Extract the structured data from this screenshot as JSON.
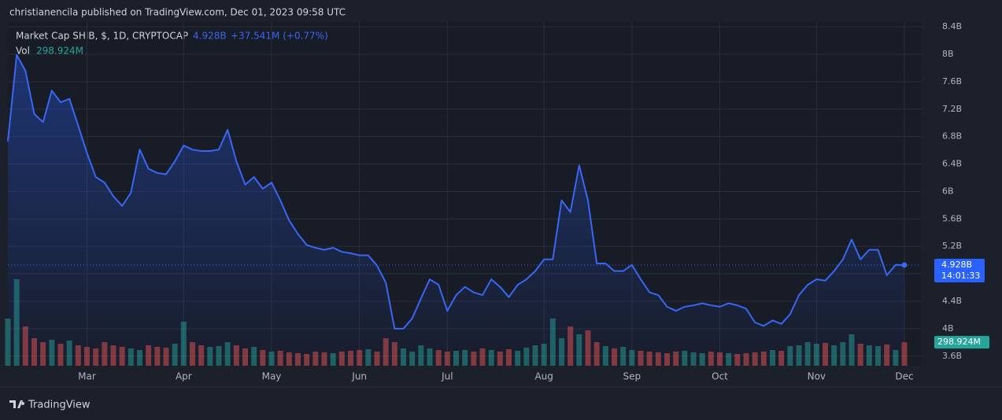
{
  "header": "christianencila published on TradingView.com, Dec 01, 2023 09:58 UTC",
  "footer": "TradingView",
  "chart_data": {
    "type": "line",
    "title": "Market Cap SHIB, $, 1D, CRYPTOCAP",
    "last_value_text": "4.928B",
    "change_text": "+37.541M (+0.77%)",
    "countdown": "14:01:33",
    "color": "#3a66f2",
    "grid": true,
    "ylim": [
      3.46,
      8.47
    ],
    "yticks": [
      {
        "value": 3.6,
        "label": "3.6B"
      },
      {
        "value": 4,
        "label": "4B"
      },
      {
        "value": 4.4,
        "label": "4.4B"
      },
      {
        "value": 4.8,
        "label": "4.8B"
      },
      {
        "value": 5.2,
        "label": "5.2B"
      },
      {
        "value": 5.6,
        "label": "5.6B"
      },
      {
        "value": 6,
        "label": "6B"
      },
      {
        "value": 6.4,
        "label": "6.4B"
      },
      {
        "value": 6.8,
        "label": "6.8B"
      },
      {
        "value": 7.2,
        "label": "7.2B"
      },
      {
        "value": 7.6,
        "label": "7.6B"
      },
      {
        "value": 8,
        "label": "8B"
      },
      {
        "value": 8.4,
        "label": "8.4B"
      }
    ],
    "categories": [
      null,
      null,
      null,
      null,
      null,
      null,
      null,
      null,
      null,
      "Mar",
      null,
      null,
      null,
      null,
      null,
      null,
      null,
      null,
      null,
      null,
      "Apr",
      null,
      null,
      null,
      null,
      null,
      null,
      null,
      null,
      null,
      "May",
      null,
      null,
      null,
      null,
      null,
      null,
      null,
      null,
      null,
      "Jun",
      null,
      null,
      null,
      null,
      null,
      null,
      null,
      null,
      null,
      "Jul",
      null,
      null,
      null,
      null,
      null,
      null,
      null,
      null,
      null,
      null,
      "Aug",
      null,
      null,
      null,
      null,
      null,
      null,
      null,
      null,
      null,
      "Sep",
      null,
      null,
      null,
      null,
      null,
      null,
      null,
      null,
      null,
      "Oct",
      null,
      null,
      null,
      null,
      null,
      null,
      null,
      null,
      null,
      null,
      "Nov",
      null,
      null,
      null,
      null,
      null,
      null,
      null,
      null,
      null,
      "Dec"
    ],
    "values": [
      6.73,
      7.99,
      7.76,
      7.13,
      7.01,
      7.47,
      7.3,
      7.35,
      6.96,
      6.56,
      6.21,
      6.13,
      5.93,
      5.79,
      5.98,
      6.61,
      6.33,
      6.27,
      6.25,
      6.44,
      6.67,
      6.61,
      6.59,
      6.59,
      6.61,
      6.9,
      6.44,
      6.1,
      6.21,
      6.04,
      6.13,
      5.87,
      5.58,
      5.38,
      5.22,
      5.18,
      5.15,
      5.18,
      5.12,
      5.1,
      5.07,
      5.07,
      4.92,
      4.67,
      4.0,
      4.0,
      4.15,
      4.44,
      4.72,
      4.64,
      4.26,
      4.49,
      4.61,
      4.53,
      4.49,
      4.72,
      4.61,
      4.46,
      4.64,
      4.72,
      4.84,
      5.01,
      5.01,
      5.87,
      5.7,
      6.38,
      5.87,
      4.95,
      4.95,
      4.84,
      4.84,
      4.93,
      4.72,
      4.53,
      4.49,
      4.32,
      4.26,
      4.32,
      4.34,
      4.37,
      4.34,
      4.32,
      4.37,
      4.34,
      4.29,
      4.09,
      4.04,
      4.12,
      4.07,
      4.21,
      4.49,
      4.64,
      4.72,
      4.7,
      4.84,
      5.01,
      5.3,
      5.01,
      5.15,
      5.15,
      4.78,
      4.93,
      4.928
    ],
    "volume": {
      "name": "Vol",
      "value_text": "298.924M",
      "up_color": "#26a69a",
      "down_color": "#ef5350",
      "values": [
        600,
        1100,
        500,
        350,
        300,
        330,
        280,
        320,
        260,
        240,
        220,
        300,
        260,
        240,
        220,
        200,
        260,
        240,
        230,
        280,
        560,
        300,
        260,
        240,
        250,
        300,
        260,
        220,
        240,
        200,
        180,
        190,
        170,
        160,
        150,
        180,
        170,
        160,
        180,
        190,
        200,
        210,
        180,
        350,
        300,
        220,
        180,
        260,
        220,
        200,
        180,
        190,
        200,
        180,
        220,
        200,
        180,
        210,
        190,
        230,
        260,
        280,
        600,
        350,
        500,
        400,
        450,
        300,
        250,
        220,
        240,
        200,
        190,
        180,
        170,
        160,
        180,
        190,
        170,
        160,
        180,
        170,
        160,
        150,
        160,
        170,
        180,
        200,
        190,
        250,
        260,
        300,
        280,
        290,
        260,
        300,
        400,
        280,
        260,
        250,
        270,
        200,
        298.924
      ]
    }
  }
}
